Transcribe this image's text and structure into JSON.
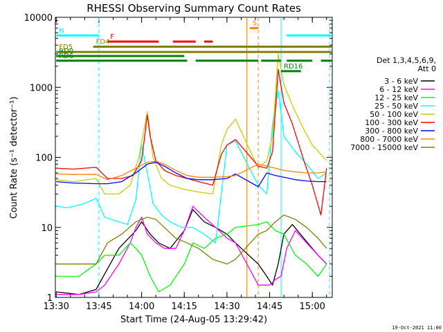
{
  "chart_data": {
    "type": "line",
    "title": "RHESSI Observing Summary Count Rates",
    "xlabel": "Start Time (24-Aug-05 13:29:42)",
    "ylabel": "Count Rate (s⁻¹ detector⁻¹)",
    "y_scale": "log",
    "ylim": [
      1,
      10000
    ],
    "xlim": [
      "13:30",
      "15:07"
    ],
    "x_ticks": [
      "13:30",
      "13:45",
      "14:00",
      "14:15",
      "14:30",
      "14:45",
      "15:00"
    ],
    "y_ticks": [
      "1",
      "10",
      "100",
      "1000",
      "10000"
    ],
    "legend_header": [
      "Det 1,3,4,5,6,9,",
      "Att 0"
    ],
    "legend_position": "right",
    "series": [
      {
        "name": "3 - 6 keV",
        "color": "#000000",
        "x": [
          "13:30",
          "13:38",
          "13:44",
          "13:52",
          "13:58",
          "14:00",
          "14:03",
          "14:06",
          "14:10",
          "14:15",
          "14:18",
          "14:22",
          "14:26",
          "14:30",
          "14:33",
          "14:41",
          "14:44",
          "14:46",
          "14:48",
          "14:50",
          "14:53",
          "14:57",
          "15:00",
          "15:02",
          "15:05"
        ],
        "y": [
          1.2,
          1.1,
          1.3,
          5,
          9,
          12,
          8,
          6,
          5,
          9,
          18,
          12,
          10,
          8,
          6,
          3,
          2,
          1.5,
          3,
          8,
          11,
          7,
          5,
          4,
          3
        ]
      },
      {
        "name": "6 - 12 keV",
        "color": "#ff00ff",
        "x": [
          "13:30",
          "13:38",
          "13:44",
          "13:47",
          "13:52",
          "13:56",
          "13:58",
          "14:00",
          "14:02",
          "14:05",
          "14:08",
          "14:12",
          "14:15",
          "14:18",
          "14:22",
          "14:26",
          "14:30",
          "14:33",
          "14:41",
          "14:45",
          "14:47",
          "14:49",
          "14:51",
          "14:54",
          "14:58",
          "15:02",
          "15:05"
        ],
        "y": [
          1.1,
          1.1,
          1.2,
          1.5,
          3,
          6,
          10,
          14,
          8,
          6,
          5,
          5,
          9,
          20,
          14,
          10,
          7,
          6,
          1.5,
          1.5,
          1.8,
          2,
          5,
          9,
          6,
          4,
          3
        ]
      },
      {
        "name": "12 - 25 keV",
        "color": "#00ff00",
        "x": [
          "13:30",
          "13:38",
          "13:44",
          "13:47",
          "13:52",
          "13:56",
          "13:58",
          "14:00",
          "14:03",
          "14:06",
          "14:10",
          "14:15",
          "14:18",
          "14:22",
          "14:26",
          "14:30",
          "14:33",
          "14:41",
          "14:44",
          "14:47",
          "14:50",
          "14:54",
          "14:58",
          "15:02",
          "15:05"
        ],
        "y": [
          2,
          2,
          3,
          4,
          4,
          6,
          5,
          4,
          2,
          1.2,
          1.5,
          3,
          6,
          5,
          7,
          8,
          10,
          11,
          12,
          9,
          8,
          4,
          3,
          2,
          3
        ]
      },
      {
        "name": "25 - 50 keV",
        "color": "#00ffff",
        "x": [
          "13:30",
          "13:34",
          "13:40",
          "13:44",
          "13:47",
          "13:52",
          "13:55",
          "13:58",
          "14:00",
          "14:02",
          "14:04",
          "14:07",
          "14:10",
          "14:14",
          "14:18",
          "14:22",
          "14:26",
          "14:30",
          "14:33",
          "14:41",
          "14:44",
          "14:46",
          "14:48",
          "14:50",
          "14:54",
          "14:58",
          "15:02",
          "15:05"
        ],
        "y": [
          20,
          19,
          22,
          26,
          14,
          12,
          11,
          25,
          150,
          60,
          22,
          15,
          12,
          10,
          10,
          8,
          6,
          150,
          170,
          40,
          30,
          300,
          900,
          200,
          120,
          80,
          50,
          60
        ]
      },
      {
        "name": "50 - 100 keV",
        "color": "#cccc00",
        "x": [
          "13:30",
          "13:36",
          "13:44",
          "13:47",
          "13:52",
          "13:56",
          "13:59",
          "14:02",
          "14:04",
          "14:07",
          "14:10",
          "14:15",
          "14:20",
          "14:25",
          "14:28",
          "14:30",
          "14:33",
          "14:41",
          "14:44",
          "14:46",
          "14:48",
          "14:50",
          "14:53",
          "14:57",
          "15:00",
          "15:05"
        ],
        "y": [
          48,
          45,
          50,
          30,
          30,
          40,
          100,
          450,
          100,
          50,
          40,
          35,
          32,
          30,
          150,
          250,
          350,
          70,
          90,
          200,
          3000,
          1100,
          550,
          250,
          150,
          90
        ]
      },
      {
        "name": "100 - 300 keV",
        "color": "#ff0000",
        "x": [
          "13:30",
          "13:36",
          "13:44",
          "13:48",
          "13:53",
          "13:57",
          "14:00",
          "14:02",
          "14:03",
          "14:05",
          "14:08",
          "14:12",
          "14:16",
          "14:20",
          "14:25",
          "14:28",
          "14:30",
          "14:33",
          "14:41",
          "14:44",
          "14:46",
          "14:48",
          "14:50",
          "14:53",
          "14:57",
          "15:00",
          "15:03",
          "15:05"
        ],
        "y": [
          70,
          68,
          72,
          50,
          50,
          55,
          90,
          400,
          200,
          90,
          65,
          55,
          50,
          45,
          40,
          110,
          150,
          180,
          75,
          70,
          120,
          1800,
          600,
          300,
          90,
          40,
          15,
          70
        ]
      },
      {
        "name": "300 - 800 keV",
        "color": "#0000ff",
        "x": [
          "13:30",
          "13:36",
          "13:44",
          "13:48",
          "13:53",
          "13:58",
          "14:02",
          "14:05",
          "14:08",
          "14:12",
          "14:16",
          "14:20",
          "14:25",
          "14:30",
          "14:33",
          "14:41",
          "14:44",
          "14:47",
          "14:50",
          "14:54",
          "14:58",
          "15:02",
          "15:05"
        ],
        "y": [
          45,
          43,
          42,
          42,
          45,
          60,
          80,
          85,
          75,
          60,
          50,
          48,
          48,
          50,
          58,
          38,
          60,
          55,
          52,
          48,
          46,
          45,
          45
        ]
      },
      {
        "name": "800 - 7000 keV",
        "color": "#ff8000",
        "x": [
          "13:30",
          "13:36",
          "13:44",
          "13:48",
          "13:53",
          "13:58",
          "14:02",
          "14:05",
          "14:08",
          "14:12",
          "14:16",
          "14:20",
          "14:25",
          "14:30",
          "14:33",
          "14:41",
          "14:44",
          "14:47",
          "14:50",
          "14:54",
          "14:58",
          "15:02",
          "15:05"
        ],
        "y": [
          58,
          57,
          57,
          48,
          55,
          70,
          85,
          88,
          80,
          65,
          55,
          52,
          52,
          53,
          55,
          80,
          75,
          70,
          65,
          62,
          60,
          60,
          62
        ]
      },
      {
        "name": "7000 - 15000 keV",
        "color": "#808000",
        "x": [
          "13:30",
          "13:36",
          "13:44",
          "13:48",
          "13:53",
          "13:58",
          "14:02",
          "14:05",
          "14:08",
          "14:12",
          "14:16",
          "14:20",
          "14:25",
          "14:30",
          "14:33",
          "14:41",
          "14:44",
          "14:47",
          "14:50",
          "14:54",
          "14:58",
          "15:02",
          "15:05"
        ],
        "y": [
          3,
          3,
          3,
          6,
          8,
          12,
          14,
          13,
          10,
          7,
          6,
          5,
          3.5,
          3,
          3.5,
          8,
          9,
          12,
          15,
          13,
          10,
          7,
          5
        ]
      }
    ],
    "state_bars": [
      {
        "label": "N",
        "color": "#00ffff",
        "y": 5500,
        "segments": [
          [
            "13:30",
            "13:45"
          ],
          [
            "14:51",
            "15:07"
          ]
        ]
      },
      {
        "label": "S",
        "color": "#ff8000",
        "y": 7000,
        "segments": [
          [
            "14:38",
            "14:41"
          ]
        ]
      },
      {
        "label": "F",
        "color": "#ff0000",
        "y": 4500,
        "segments": [
          [
            "13:48",
            "14:06"
          ],
          [
            "14:11",
            "14:19"
          ],
          [
            "14:22",
            "14:25"
          ]
        ]
      },
      {
        "label": "FD4",
        "color": "#808000",
        "y": 3800,
        "segments": [
          [
            "13:43",
            "15:07"
          ]
        ]
      },
      {
        "label": "FD5",
        "color": "#808000",
        "y": 3200,
        "segments": [
          [
            "13:30",
            "15:07"
          ]
        ]
      },
      {
        "label": "RD0",
        "color": "#008000",
        "y": 2800,
        "segments": [
          [
            "13:30",
            "14:15"
          ]
        ]
      },
      {
        "label": "RD6",
        "color": "#008000",
        "y": 2400,
        "segments": [
          [
            "13:30",
            "14:16"
          ],
          [
            "14:19",
            "14:41"
          ],
          [
            "14:42",
            "14:49"
          ],
          [
            "14:51",
            "15:00"
          ],
          [
            "15:03",
            "15:07"
          ]
        ]
      },
      {
        "label": "RD16",
        "color": "#008000",
        "y": 1700,
        "segments": [
          [
            "14:49",
            "14:56"
          ]
        ]
      }
    ],
    "markers": [
      {
        "color": "#00ffff",
        "style": "dashed",
        "x": [
          "13:45",
          "15:06"
        ]
      },
      {
        "color": "#00ffff",
        "style": "solid",
        "x": [
          "14:49"
        ]
      },
      {
        "color": "#ff8000",
        "style": "solid",
        "x": [
          "14:37"
        ]
      },
      {
        "color": "#ff8000",
        "style": "dashed",
        "x": [
          "14:41"
        ]
      }
    ],
    "date_stamp": "19-Oct-2021 11:00"
  }
}
